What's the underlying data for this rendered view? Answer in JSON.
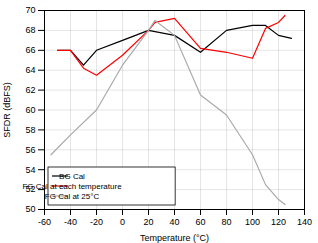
{
  "chart_data": {
    "type": "line",
    "xlabel": "Temperature (°C)",
    "ylabel": "SFDR (dBFS)",
    "series": [
      {
        "name": "BG Cal",
        "color": "black",
        "x": [
          -50,
          -40,
          -30,
          -20,
          0,
          20,
          40,
          60,
          80,
          100,
          110,
          120,
          130
        ],
        "values": [
          66.0,
          66.0,
          64.5,
          66.0,
          67.0,
          68.0,
          67.5,
          65.8,
          68.0,
          68.5,
          68.5,
          67.5,
          67.2
        ]
      },
      {
        "name": "FG Cal at each temperature",
        "color": "red",
        "x": [
          -50,
          -40,
          -30,
          -20,
          0,
          20,
          25,
          40,
          60,
          80,
          100,
          110,
          120,
          125
        ],
        "values": [
          66.0,
          66.0,
          64.2,
          63.5,
          65.5,
          68.0,
          68.8,
          69.2,
          66.2,
          65.8,
          65.2,
          68.2,
          68.8,
          69.5
        ]
      },
      {
        "name": "FG Cal at 25°C",
        "color": "#aaaaaa",
        "x": [
          -55,
          -40,
          -20,
          0,
          20,
          25,
          40,
          60,
          80,
          100,
          110,
          120,
          125
        ],
        "values": [
          55.5,
          57.5,
          60.0,
          64.5,
          68.0,
          69.0,
          67.5,
          61.5,
          59.5,
          55.5,
          52.5,
          51.0,
          50.5
        ]
      }
    ],
    "xlim": [
      -60,
      140
    ],
    "ylim": [
      50,
      70
    ],
    "xticks": [
      -60,
      -40,
      -20,
      0,
      20,
      40,
      60,
      80,
      100,
      120,
      140
    ],
    "yticks": [
      50,
      52,
      54,
      56,
      58,
      60,
      62,
      64,
      66,
      68,
      70
    ],
    "grid": true,
    "legend": "lower left"
  }
}
